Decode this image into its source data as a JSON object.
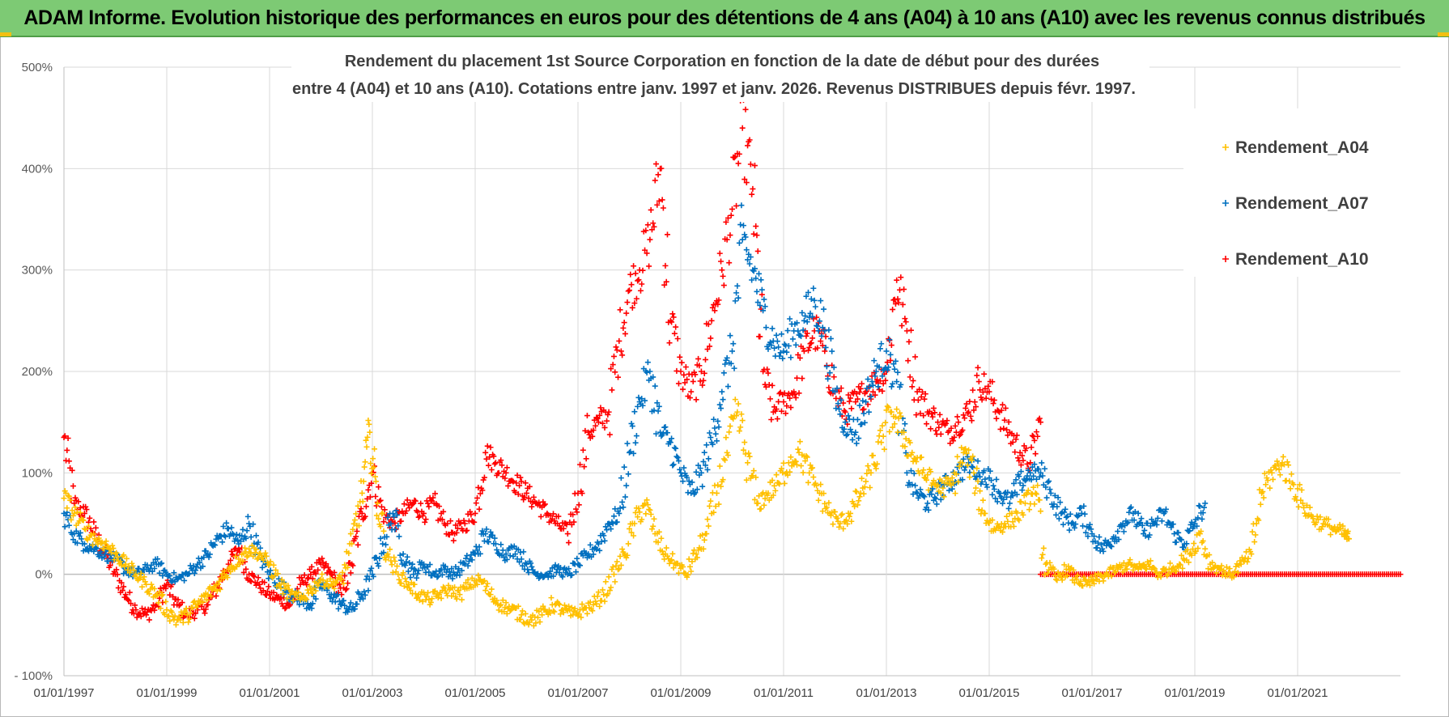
{
  "banner": {
    "title": "ADAM Informe. Evolution historique des performances en euros pour des détentions de 4 ans (A04) à 10 ans (A10) avec les revenus connus distribués"
  },
  "colors": {
    "banner": "#7dca74",
    "A04": "#ffc000",
    "A07": "#0070c0",
    "A10": "#ff0000",
    "grid": "#d9d9d9",
    "axis": "#bfbfbf"
  },
  "chart_data": {
    "type": "scatter",
    "title_lines": [
      "Rendement du placement 1st Source Corporation en fonction de la date de début pour des durées",
      "entre 4 (A04) et 10 ans (A10). Cotations entre janv. 1997 et janv. 2026. Revenus DISTRIBUES depuis févr. 1997."
    ],
    "ylabel": "",
    "xlabel": "",
    "ylim": [
      -100,
      500
    ],
    "xlim": [
      1997.0,
      2023.0
    ],
    "yticks": [
      {
        "v": -100,
        "label": "- 100%"
      },
      {
        "v": 0,
        "label": "0%"
      },
      {
        "v": 100,
        "label": "100%"
      },
      {
        "v": 200,
        "label": "200%"
      },
      {
        "v": 300,
        "label": "300%"
      },
      {
        "v": 400,
        "label": "400%"
      },
      {
        "v": 500,
        "label": "500%"
      }
    ],
    "xticks": [
      {
        "v": 1997,
        "label": "01/01/1997"
      },
      {
        "v": 1999,
        "label": "01/01/1999"
      },
      {
        "v": 2001,
        "label": "01/01/2001"
      },
      {
        "v": 2003,
        "label": "01/01/2003"
      },
      {
        "v": 2005,
        "label": "01/01/2005"
      },
      {
        "v": 2007,
        "label": "01/01/2007"
      },
      {
        "v": 2009,
        "label": "01/01/2009"
      },
      {
        "v": 2011,
        "label": "01/01/2011"
      },
      {
        "v": 2013,
        "label": "01/01/2013"
      },
      {
        "v": 2015,
        "label": "01/01/2015"
      },
      {
        "v": 2017,
        "label": "01/01/2017"
      },
      {
        "v": 2019,
        "label": "01/01/2019"
      },
      {
        "v": 2021,
        "label": "01/01/2021"
      }
    ],
    "legend_position": "top-right",
    "series": [
      {
        "name": "Rendement_A04",
        "key": "A04",
        "x": [
          1997.0,
          1997.2,
          1997.4,
          1997.6,
          1997.8,
          1998.0,
          1998.2,
          1998.4,
          1998.6,
          1998.8,
          1999.0,
          1999.2,
          1999.4,
          1999.6,
          1999.8,
          2000.0,
          2000.2,
          2000.4,
          2000.6,
          2000.8,
          2001.0,
          2001.2,
          2001.4,
          2001.6,
          2001.8,
          2002.0,
          2002.2,
          2002.4,
          2002.6,
          2002.8,
          2002.95,
          2003.1,
          2003.3,
          2003.5,
          2003.7,
          2003.9,
          2004.1,
          2004.3,
          2004.5,
          2004.7,
          2004.9,
          2005.1,
          2005.3,
          2005.5,
          2005.7,
          2005.9,
          2006.1,
          2006.3,
          2006.5,
          2006.7,
          2006.9,
          2007.1,
          2007.3,
          2007.5,
          2007.7,
          2007.9,
          2008.1,
          2008.3,
          2008.5,
          2008.7,
          2008.9,
          2009.1,
          2009.3,
          2009.5,
          2009.7,
          2009.9,
          2010.1,
          2010.3,
          2010.5,
          2010.7,
          2010.9,
          2011.1,
          2011.3,
          2011.5,
          2011.7,
          2011.9,
          2012.1,
          2012.3,
          2012.5,
          2012.7,
          2012.9,
          2013.1,
          2013.3,
          2013.5,
          2013.7,
          2013.9,
          2014.1,
          2014.3,
          2014.5,
          2014.7,
          2014.9,
          2015.1,
          2015.3,
          2015.5,
          2015.7,
          2015.9,
          2016.1,
          2016.3,
          2016.5,
          2016.7,
          2016.9,
          2017.1,
          2017.3,
          2017.5,
          2017.7,
          2017.9,
          2018.1,
          2018.3,
          2018.5,
          2018.7,
          2018.9,
          2019.1,
          2019.3,
          2019.5,
          2019.7,
          2019.9,
          2020.1,
          2020.3,
          2020.5,
          2020.7,
          2020.9,
          2021.1,
          2021.3,
          2021.5,
          2021.7,
          2021.9,
          2022.0
        ],
        "y": [
          75,
          60,
          45,
          35,
          30,
          20,
          10,
          0,
          -10,
          -20,
          -35,
          -45,
          -40,
          -30,
          -20,
          -10,
          5,
          15,
          25,
          20,
          10,
          -10,
          -20,
          -25,
          -15,
          -5,
          -10,
          -5,
          30,
          80,
          140,
          70,
          20,
          0,
          -10,
          -20,
          -25,
          -20,
          -15,
          -20,
          -10,
          -5,
          -20,
          -30,
          -35,
          -40,
          -45,
          -40,
          -30,
          -35,
          -40,
          -35,
          -30,
          -20,
          0,
          20,
          50,
          70,
          40,
          20,
          10,
          0,
          20,
          40,
          80,
          120,
          160,
          110,
          70,
          80,
          90,
          110,
          120,
          100,
          80,
          60,
          50,
          60,
          80,
          100,
          130,
          160,
          140,
          120,
          100,
          90,
          85,
          90,
          120,
          100,
          60,
          45,
          50,
          55,
          70,
          80,
          10,
          -5,
          5,
          -5,
          -10,
          -5,
          0,
          5,
          10,
          5,
          10,
          0,
          5,
          10,
          20,
          40,
          10,
          5,
          0,
          10,
          20,
          80,
          100,
          110,
          90,
          70,
          55,
          50,
          45,
          40,
          35
        ]
      },
      {
        "name": "Rendement_A07",
        "key": "A07",
        "x": [
          1997.0,
          1997.2,
          1997.4,
          1997.6,
          1997.8,
          1998.0,
          1998.2,
          1998.4,
          1998.6,
          1998.8,
          1999.0,
          1999.2,
          1999.4,
          1999.6,
          1999.8,
          2000.0,
          2000.2,
          2000.4,
          2000.6,
          2000.8,
          2001.0,
          2001.2,
          2001.4,
          2001.6,
          2001.8,
          2002.0,
          2002.2,
          2002.4,
          2002.6,
          2002.8,
          2003.0,
          2003.2,
          2003.4,
          2003.6,
          2003.8,
          2004.0,
          2004.2,
          2004.4,
          2004.6,
          2004.8,
          2005.0,
          2005.2,
          2005.4,
          2005.6,
          2005.8,
          2006.0,
          2006.2,
          2006.4,
          2006.6,
          2006.8,
          2007.0,
          2007.2,
          2007.4,
          2007.6,
          2007.8,
          2008.0,
          2008.2,
          2008.4,
          2008.6,
          2008.8,
          2009.0,
          2009.2,
          2009.4,
          2009.6,
          2009.8,
          2010.0,
          2010.2,
          2010.4,
          2010.6,
          2010.8,
          2011.0,
          2011.2,
          2011.4,
          2011.6,
          2011.8,
          2012.0,
          2012.2,
          2012.4,
          2012.6,
          2012.8,
          2013.0,
          2013.2,
          2013.4,
          2013.6,
          2013.8,
          2014.0,
          2014.2,
          2014.4,
          2014.6,
          2014.8,
          2015.0,
          2015.2,
          2015.4,
          2015.6,
          2015.8,
          2016.0,
          2016.2,
          2016.4,
          2016.6,
          2016.8,
          2017.0,
          2017.2,
          2017.4,
          2017.6,
          2017.8,
          2018.0,
          2018.2,
          2018.4,
          2018.6,
          2018.8,
          2019.0,
          2019.2
        ],
        "y": [
          60,
          40,
          30,
          25,
          20,
          15,
          5,
          0,
          5,
          10,
          0,
          -5,
          0,
          10,
          20,
          35,
          45,
          30,
          50,
          20,
          0,
          -10,
          -20,
          -25,
          -30,
          -10,
          -20,
          -30,
          -35,
          -20,
          0,
          30,
          60,
          20,
          0,
          10,
          0,
          5,
          0,
          10,
          20,
          40,
          30,
          20,
          25,
          10,
          0,
          0,
          5,
          0,
          10,
          20,
          30,
          50,
          60,
          120,
          170,
          200,
          140,
          130,
          100,
          80,
          100,
          130,
          180,
          220,
          330,
          300,
          260,
          230,
          220,
          240,
          250,
          270,
          240,
          180,
          150,
          140,
          170,
          200,
          220,
          190,
          100,
          80,
          70,
          80,
          90,
          100,
          110,
          100,
          95,
          80,
          70,
          90,
          100,
          100,
          80,
          60,
          50,
          60,
          40,
          25,
          35,
          50,
          60,
          40,
          50,
          60,
          40,
          30,
          50,
          70
        ]
      },
      {
        "name": "Rendement_A10",
        "key": "A10",
        "x": [
          1997.0,
          1997.2,
          1997.4,
          1997.6,
          1997.8,
          1998.0,
          1998.2,
          1998.4,
          1998.6,
          1998.8,
          1999.0,
          1999.2,
          1999.4,
          1999.6,
          1999.8,
          2000.0,
          2000.2,
          2000.4,
          2000.6,
          2000.8,
          2001.0,
          2001.2,
          2001.4,
          2001.6,
          2001.8,
          2002.0,
          2002.2,
          2002.4,
          2002.6,
          2002.8,
          2003.0,
          2003.2,
          2003.4,
          2003.6,
          2003.8,
          2004.0,
          2004.2,
          2004.4,
          2004.6,
          2004.8,
          2005.0,
          2005.2,
          2005.4,
          2005.6,
          2005.8,
          2006.0,
          2006.2,
          2006.4,
          2006.6,
          2006.8,
          2007.0,
          2007.2,
          2007.4,
          2007.6,
          2007.8,
          2008.0,
          2008.2,
          2008.4,
          2008.6,
          2008.8,
          2009.0,
          2009.2,
          2009.4,
          2009.6,
          2009.8,
          2010.0,
          2010.2,
          2010.4,
          2010.6,
          2010.8,
          2011.0,
          2011.2,
          2011.4,
          2011.6,
          2011.8,
          2012.0,
          2012.2,
          2012.4,
          2012.6,
          2012.8,
          2013.0,
          2013.2,
          2013.4,
          2013.6,
          2013.8,
          2014.0,
          2014.2,
          2014.4,
          2014.6,
          2014.8,
          2015.0,
          2015.2,
          2015.4,
          2015.6,
          2015.8,
          2016.0
        ],
        "y": [
          135,
          70,
          60,
          40,
          20,
          0,
          -20,
          -35,
          -40,
          -30,
          -10,
          -30,
          -40,
          -35,
          -30,
          -10,
          10,
          25,
          0,
          -10,
          -20,
          -25,
          -30,
          -10,
          0,
          10,
          0,
          -20,
          10,
          60,
          100,
          60,
          50,
          60,
          70,
          60,
          70,
          50,
          40,
          50,
          60,
          120,
          110,
          100,
          90,
          80,
          70,
          60,
          50,
          40,
          80,
          140,
          150,
          160,
          230,
          280,
          300,
          330,
          400,
          250,
          200,
          180,
          200,
          250,
          300,
          360,
          440,
          380,
          200,
          160,
          170,
          180,
          220,
          240,
          220,
          180,
          160,
          170,
          180,
          190,
          200,
          290,
          240,
          180,
          160,
          150,
          140,
          150,
          160,
          190,
          180,
          160,
          140,
          120,
          110,
          150
        ],
        "zero_band": [
          2016.0,
          2023.0
        ]
      }
    ]
  }
}
